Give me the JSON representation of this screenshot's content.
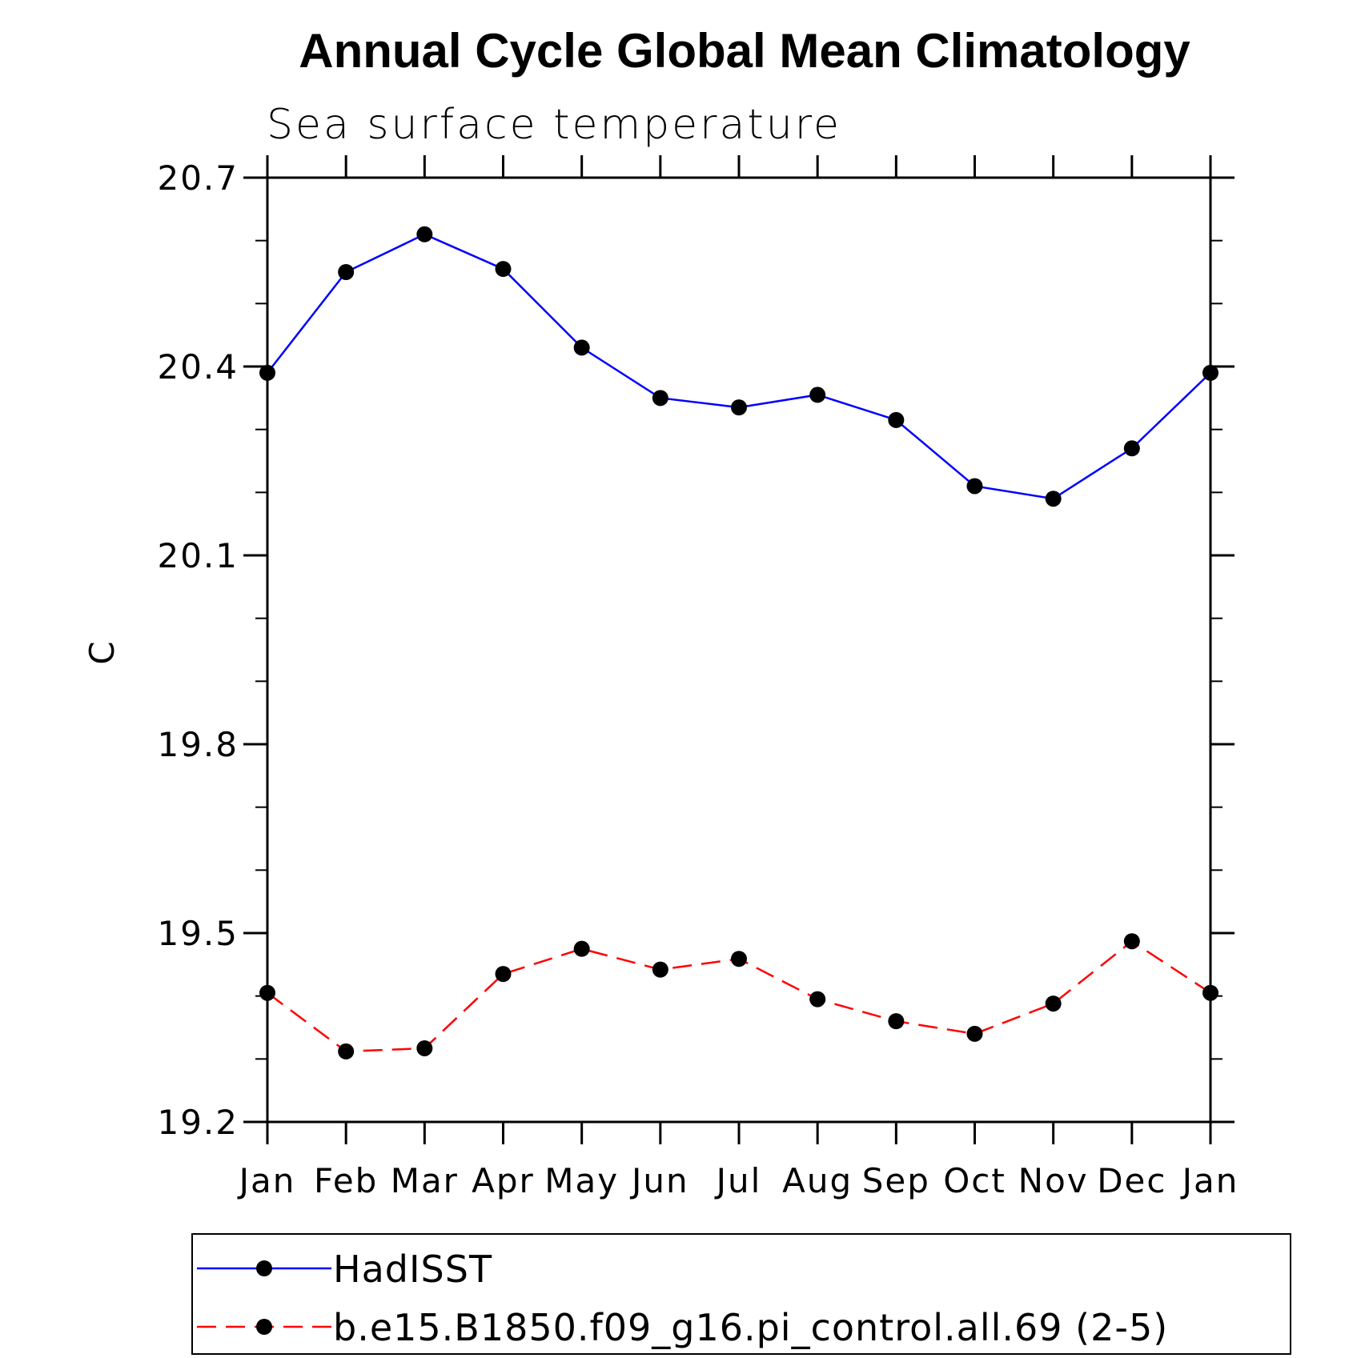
{
  "chart_data": {
    "type": "line",
    "title": "Annual Cycle Global Mean Climatology",
    "subtitle": "Sea surface temperature",
    "xlabel": "",
    "ylabel": "C",
    "ylim": [
      19.2,
      20.7
    ],
    "ymajor_ticks": [
      19.2,
      19.5,
      19.8,
      20.1,
      20.4,
      20.7
    ],
    "yminor_step": 0.1,
    "ytick_labels": [
      "19.2",
      "19.5",
      "19.8",
      "20.1",
      "20.4",
      "20.7"
    ],
    "categories": [
      "Jan",
      "Feb",
      "Mar",
      "Apr",
      "May",
      "Jun",
      "Jul",
      "Aug",
      "Sep",
      "Oct",
      "Nov",
      "Dec",
      "Jan"
    ],
    "series": [
      {
        "name": "HadISST",
        "color": "#0000ff",
        "dash": "solid",
        "marker_color": "#000000",
        "values": [
          20.39,
          20.55,
          20.61,
          20.555,
          20.43,
          20.35,
          20.335,
          20.355,
          20.315,
          20.21,
          20.19,
          20.27,
          20.39
        ]
      },
      {
        "name": "b.e15.B1850.f09_g16.pi_control.all.69 (2-5)",
        "color": "#ff0000",
        "dash": "dashed",
        "marker_color": "#000000",
        "values": [
          19.405,
          19.312,
          19.317,
          19.435,
          19.475,
          19.442,
          19.459,
          19.395,
          19.36,
          19.34,
          19.388,
          19.487,
          19.405
        ]
      }
    ],
    "legend_position": "bottom",
    "grid": false
  }
}
